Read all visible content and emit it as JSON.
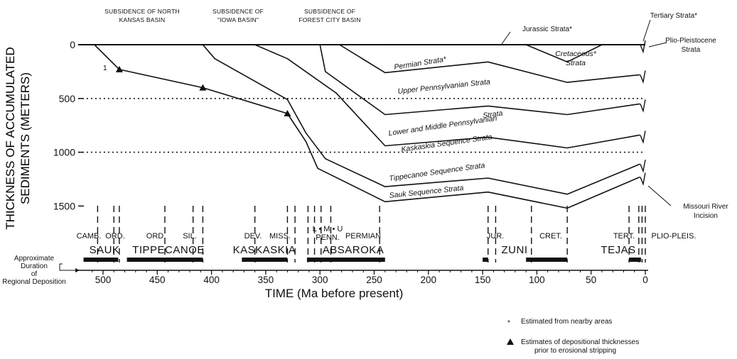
{
  "chart_data": {
    "type": "line",
    "xlabel": "TIME (Ma before present)",
    "ylabel": "THICKNESS OF ACCUMULATED SEDIMENTS (METERS)",
    "xlim": [
      520,
      0
    ],
    "ylim": [
      0,
      1600
    ],
    "x_ticks": [
      500,
      450,
      400,
      350,
      300,
      250,
      200,
      150,
      100,
      50,
      0
    ],
    "y_ticks": [
      0,
      500,
      1000,
      1500
    ],
    "reference_lines_y": [
      500,
      1000
    ],
    "series": [
      {
        "name": "Sauk Sequence Strata",
        "points": [
          [
            523,
            0
          ],
          [
            508,
            0
          ],
          [
            485,
            230
          ],
          [
            408,
            400
          ],
          [
            330,
            640
          ],
          [
            313,
            900
          ],
          [
            302,
            1150
          ],
          [
            240,
            1460
          ],
          [
            145,
            1370
          ],
          [
            72,
            1520
          ],
          [
            5,
            1230
          ]
        ]
      },
      {
        "name": "Tippecanoe Sequence Strata",
        "points": [
          [
            408,
            0
          ],
          [
            397,
            130
          ],
          [
            330,
            510
          ],
          [
            313,
            820
          ],
          [
            295,
            1060
          ],
          [
            240,
            1320
          ],
          [
            145,
            1240
          ],
          [
            72,
            1390
          ],
          [
            5,
            1110
          ]
        ]
      },
      {
        "name": "Kaskaskia Sequence Strata",
        "points": [
          [
            360,
            0
          ],
          [
            330,
            130
          ],
          [
            285,
            450
          ],
          [
            240,
            940
          ],
          [
            145,
            860
          ],
          [
            72,
            960
          ],
          [
            5,
            840
          ]
        ]
      },
      {
        "name": "Lower and Middle Pennsylvanian Strata",
        "points": [
          [
            300,
            0
          ],
          [
            295,
            250
          ],
          [
            240,
            650
          ],
          [
            145,
            570
          ],
          [
            72,
            650
          ],
          [
            5,
            550
          ]
        ]
      },
      {
        "name": "Upper Pennsylvanian Strata",
        "points": [
          [
            282,
            0
          ],
          [
            240,
            260
          ],
          [
            145,
            160
          ],
          [
            72,
            350
          ],
          [
            5,
            280
          ]
        ]
      },
      {
        "name": "Permian Strata*",
        "points": [
          [
            240,
            0
          ],
          [
            145,
            0
          ],
          [
            72,
            0
          ],
          [
            5,
            0
          ]
        ]
      },
      {
        "name": "Cretaceous* Strata",
        "points": [
          [
            110,
            0
          ],
          [
            72,
            160
          ],
          [
            40,
            0
          ]
        ]
      }
    ],
    "triangles": [
      [
        485,
        230
      ],
      [
        408,
        400
      ],
      [
        330,
        640
      ]
    ],
    "annotations": [
      "SUBSIDENCE OF NORTH KANSAS BASIN",
      "SUBSIDENCE OF \"IOWA BASIN\"",
      "SUBSIDENCE OF FOREST CITY BASIN",
      "Jurassic Strata*",
      "Tertiary Strata*",
      "Plio-Pleistocene Strata",
      "Missouri River Incision",
      "Permian Strata*",
      "Cretaceous* Strata",
      "Upper Pennsylvanian Strata",
      "Lower and Middle Pennsylvanian Strata",
      "Kaskaskia Sequence Strata",
      "Tippecanoe Sequence Strata",
      "Sauk Sequence Strata"
    ],
    "periods": [
      "CAMB.",
      "ORD.",
      "ORD",
      "SIL.",
      "DEV.",
      "MISS.",
      "L",
      "M",
      "U",
      "PENN.",
      "PERMIAN",
      "JUR.",
      "CRET.",
      "TERT.",
      "PLIO-PLEIS."
    ],
    "sequences": [
      {
        "name": "SAUK",
        "start": 518,
        "end": 486
      },
      {
        "name": "TIPPECANOE",
        "start": 478,
        "end": 408
      },
      {
        "name": "KASKASKIA",
        "start": 372,
        "end": 330
      },
      {
        "name": "ABSAROKA",
        "start": 312,
        "end": 240
      },
      {
        "name": "ZUNI",
        "start": 150,
        "end": 145
      },
      {
        "name": "ZUNI-2",
        "start": 110,
        "end": 72
      },
      {
        "name": "TEJAS",
        "start": 15,
        "end": 4
      }
    ]
  },
  "labels": {
    "subsidence_north_kansas_1": "SUBSIDENCE OF NORTH",
    "subsidence_north_kansas_2": "KANSAS BASIN",
    "subsidence_iowa_1": "SUBSIDENCE OF",
    "subsidence_iowa_2": "\"IOWA BASIN\"",
    "subsidence_forest_1": "SUBSIDENCE OF",
    "subsidence_forest_2": "FOREST CITY BASIN",
    "jurassic": "Jurassic Strata*",
    "tertiary": "Tertiary Strata*",
    "plio_1": "Plio-Pleistocene",
    "plio_2": "Strata",
    "missouri_1": "Missouri River",
    "missouri_2": "Incision",
    "permian": "Permian Strata*",
    "cretaceous_1": "Cretaceous*",
    "cretaceous_2": "Strata",
    "upper_penn": "Upper Pennsylvanian Strata",
    "lower_middle_penn_1": "Lower and Middle Pennsylvanian",
    "lower_middle_penn_2": "Strata",
    "kaskaskia_strata": "Kaskaskia Sequence Strata",
    "tippecanoe_strata": "Tippecanoe Sequence Strata",
    "sauk_strata": "Sauk Sequence Strata",
    "marker_one": "1",
    "ylabel_1": "THICKNESS OF ACCUMULATED",
    "ylabel_2": "SEDIMENTS (METERS)",
    "xlabel": "TIME (Ma before present)",
    "approx_1": "Approximate",
    "approx_2": "Duration",
    "approx_3": "of",
    "approx_4": "Regional Deposition",
    "p_camb": "CAMB.",
    "p_ord1": "ORD.",
    "p_ord2": "ORD",
    "p_sil": "SIL.",
    "p_dev": "DEV.",
    "p_miss": "MISS.",
    "p_lmu": "L • M • U",
    "p_penn": "PENN.",
    "p_permian": "PERMIAN",
    "p_jur": "JUR.",
    "p_cret": "CRET.",
    "p_tert": "TERT.",
    "p_plio": "PLIO-PLEIS.",
    "s_sauk": "SAUK",
    "s_tippecanoe": "TIPPECANOE",
    "s_kaskaskia": "KASKASKIA",
    "s_absaroka": "ABSAROKA",
    "s_zuni": "ZUNI",
    "s_tejas": "TEJAS",
    "legend_star": "*",
    "legend_star_text": "Estimated from nearby areas",
    "legend_tri_text_1": "Estimates of depositional thicknesses",
    "legend_tri_text_2": "prior to erosional stripping"
  },
  "colors": {
    "ink": "#111111",
    "background": "#ffffff"
  }
}
